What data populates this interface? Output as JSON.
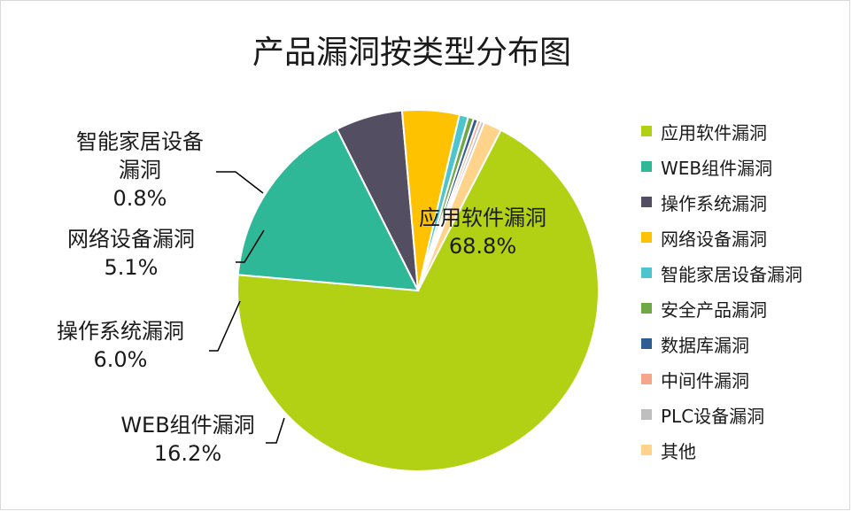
{
  "chart_data": {
    "type": "pie",
    "title": "产品漏洞按类型分布图",
    "legend_position": "right",
    "slices": [
      {
        "name": "应用软件漏洞",
        "value": 68.8,
        "color": "#b3d114",
        "label": [
          "应用软件漏洞",
          "68.8%"
        ]
      },
      {
        "name": "WEB组件漏洞",
        "value": 16.2,
        "color": "#2eb897",
        "label": [
          "WEB组件漏洞",
          "16.2%"
        ]
      },
      {
        "name": "操作系统漏洞",
        "value": 6.0,
        "color": "#544e63",
        "label": [
          "操作系统漏洞",
          "6.0%"
        ]
      },
      {
        "name": "网络设备漏洞",
        "value": 5.1,
        "color": "#fec200",
        "label": [
          "网络设备漏洞",
          "5.1%"
        ]
      },
      {
        "name": "智能家居设备漏洞",
        "value": 0.8,
        "color": "#4dc4ce",
        "label": [
          "智能家居设备",
          "漏洞",
          "0.8%"
        ]
      },
      {
        "name": "安全产品漏洞",
        "value": 0.5,
        "color": "#6fa844",
        "label": null
      },
      {
        "name": "数据库漏洞",
        "value": 0.4,
        "color": "#2f5d93",
        "label": null
      },
      {
        "name": "中间件漏洞",
        "value": 0.3,
        "color": "#f4a58a",
        "label": null
      },
      {
        "name": "PLC设备漏洞",
        "value": 0.3,
        "color": "#bfbfbf",
        "label": null
      },
      {
        "name": "其他",
        "value": 1.6,
        "color": "#ffd38a",
        "label": null
      }
    ]
  }
}
